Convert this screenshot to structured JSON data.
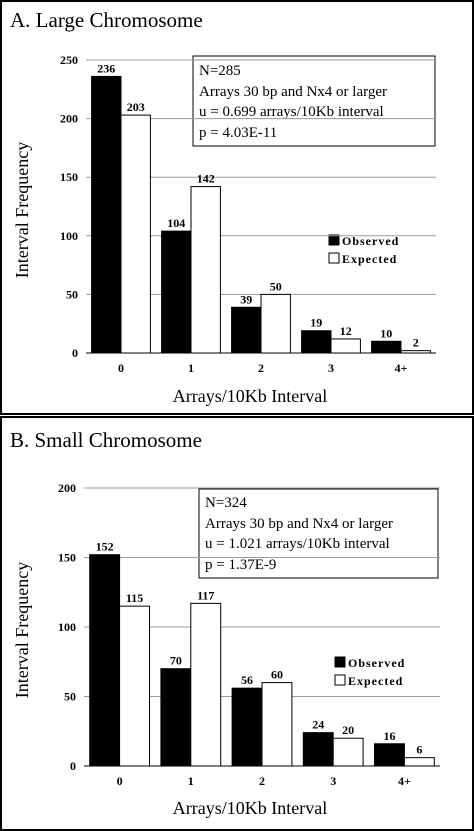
{
  "chart_data": [
    {
      "type": "bar",
      "title": "A.  Large Chromosome",
      "xlabel": "Arrays/10Kb Interval",
      "ylabel": "Interval Frequency",
      "categories": [
        "0",
        "1",
        "2",
        "3",
        "4+"
      ],
      "ylim": [
        0,
        250
      ],
      "yticks": [
        0,
        50,
        100,
        150,
        200,
        250
      ],
      "grid": true,
      "legend_position": "right",
      "series": [
        {
          "name": "Observed",
          "color": "#000000",
          "values": [
            236,
            104,
            39,
            19,
            10
          ]
        },
        {
          "name": "Expected",
          "color": "#ffffff",
          "values": [
            203,
            142,
            50,
            12,
            2
          ]
        }
      ],
      "stats": [
        "N=285",
        "Arrays 30 bp and Nx4 or larger",
        "u = 0.699 arrays/10Kb interval",
        "p = 4.03E-11"
      ]
    },
    {
      "type": "bar",
      "title": "B.  Small Chromosome",
      "xlabel": "Arrays/10Kb Interval",
      "ylabel": "Interval Frequency",
      "categories": [
        "0",
        "1",
        "2",
        "3",
        "4+"
      ],
      "ylim": [
        0,
        200
      ],
      "yticks": [
        0,
        50,
        100,
        150,
        200
      ],
      "grid": true,
      "legend_position": "right",
      "series": [
        {
          "name": "Observed",
          "color": "#000000",
          "values": [
            152,
            70,
            56,
            24,
            16
          ]
        },
        {
          "name": "Expected",
          "color": "#ffffff",
          "values": [
            115,
            117,
            60,
            20,
            6
          ]
        }
      ],
      "stats": [
        "N=324",
        "Arrays 30 bp and Nx4 or larger",
        "u = 1.021 arrays/10Kb interval",
        "p = 1.37E-9"
      ]
    }
  ]
}
